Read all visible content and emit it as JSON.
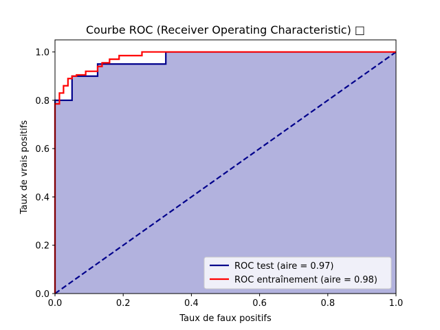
{
  "chart_data": {
    "type": "line",
    "title": "Courbe ROC (Receiver Operating Characteristic) □",
    "xlabel": "Taux de faux positifs",
    "ylabel": "Taux de vrais positifs",
    "xlim": [
      0.0,
      1.0
    ],
    "ylim": [
      0.0,
      1.05
    ],
    "xticks": [
      "0.0",
      "0.2",
      "0.4",
      "0.6",
      "0.8",
      "1.0"
    ],
    "yticks": [
      "0.0",
      "0.2",
      "0.4",
      "0.6",
      "0.8",
      "1.0"
    ],
    "grid": false,
    "legend_position": "lower-right",
    "fill_under_test": {
      "color": "#b2b2de"
    },
    "diagonal": {
      "color": "#00008b",
      "style": "dashed",
      "x": [
        0,
        1
      ],
      "y": [
        0,
        1
      ]
    },
    "series": [
      {
        "name": "ROC test (aire = 0.97)",
        "color": "#00008b",
        "x": [
          0,
          0,
          0.05,
          0.05,
          0.125,
          0.125,
          0.325,
          0.325,
          1.0
        ],
        "y": [
          0,
          0.8,
          0.8,
          0.9,
          0.9,
          0.95,
          0.95,
          1.0,
          1.0
        ]
      },
      {
        "name": "ROC entraînement (aire = 0.98)",
        "color": "#ff0000",
        "x": [
          0,
          0,
          0.013,
          0.013,
          0.025,
          0.025,
          0.038,
          0.038,
          0.05,
          0.05,
          0.063,
          0.063,
          0.09,
          0.09,
          0.125,
          0.125,
          0.138,
          0.138,
          0.16,
          0.16,
          0.188,
          0.188,
          0.255,
          0.255,
          1.0
        ],
        "y": [
          0,
          0.785,
          0.785,
          0.83,
          0.83,
          0.86,
          0.86,
          0.89,
          0.89,
          0.9,
          0.9,
          0.905,
          0.905,
          0.92,
          0.92,
          0.94,
          0.94,
          0.955,
          0.955,
          0.97,
          0.97,
          0.985,
          0.985,
          1.0,
          1.0
        ]
      }
    ]
  }
}
